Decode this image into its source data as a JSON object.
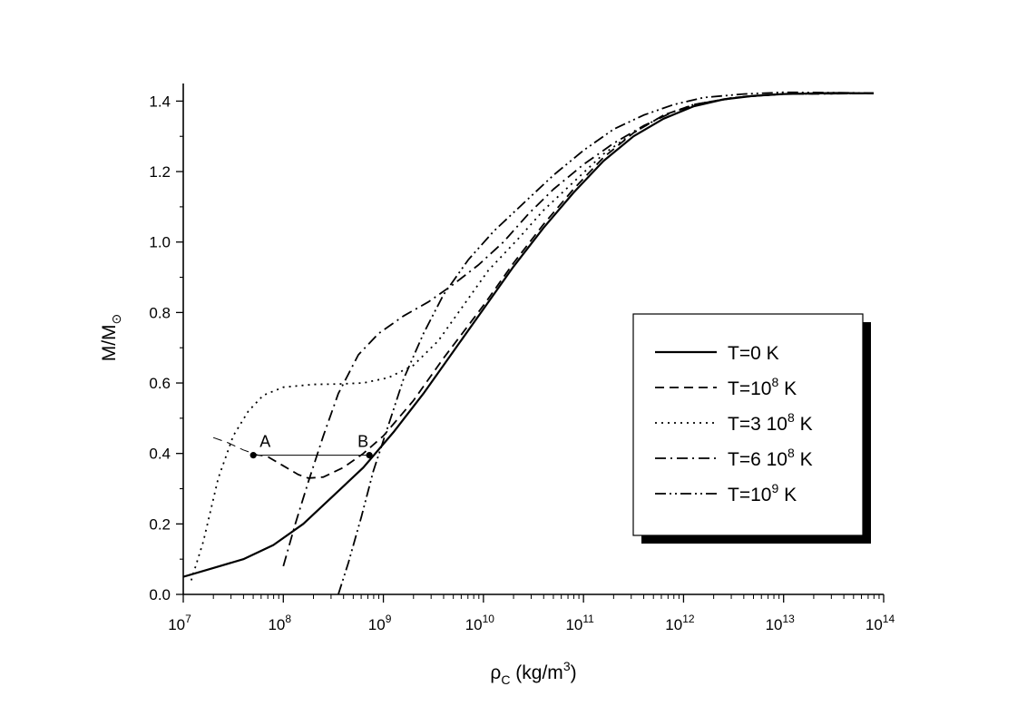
{
  "chart_data": {
    "type": "line",
    "x_scale": "log",
    "xlim_exp": [
      7,
      14
    ],
    "ylim": [
      0,
      1.45
    ],
    "x_tick_exponents": [
      7,
      8,
      9,
      10,
      11,
      12,
      13,
      14
    ],
    "x_tick_base": "10",
    "y_ticks": [
      "0.0",
      "0.2",
      "0.4",
      "0.6",
      "0.8",
      "1.0",
      "1.2",
      "1.4"
    ],
    "xlabel": {
      "main": "ρ",
      "sub": "C",
      "unit_pre": " (kg/m",
      "sup": "3",
      "unit_post": ")"
    },
    "ylabel": {
      "main": "M/M",
      "sub": "⊙"
    },
    "series": [
      {
        "name": "T=0 K",
        "legend": {
          "pre": "T=0 K",
          "sup": "",
          "post": ""
        },
        "dash": "solid",
        "width": 2.2,
        "points": [
          [
            7.0,
            0.05
          ],
          [
            7.3,
            0.075
          ],
          [
            7.6,
            0.1
          ],
          [
            7.9,
            0.14
          ],
          [
            8.2,
            0.2
          ],
          [
            8.5,
            0.28
          ],
          [
            8.8,
            0.36
          ],
          [
            9.1,
            0.46
          ],
          [
            9.4,
            0.57
          ],
          [
            9.7,
            0.69
          ],
          [
            10.0,
            0.81
          ],
          [
            10.3,
            0.93
          ],
          [
            10.6,
            1.04
          ],
          [
            10.9,
            1.14
          ],
          [
            11.2,
            1.23
          ],
          [
            11.5,
            1.3
          ],
          [
            11.8,
            1.35
          ],
          [
            12.1,
            1.385
          ],
          [
            12.4,
            1.405
          ],
          [
            12.7,
            1.415
          ],
          [
            13.0,
            1.42
          ],
          [
            13.5,
            1.423
          ],
          [
            13.9,
            1.422
          ]
        ]
      },
      {
        "name": "T=10^8 K",
        "legend": {
          "pre": "T=10",
          "sup": "8",
          "post": " K"
        },
        "dash": "10,6",
        "width": 1.8,
        "points": [
          [
            7.85,
            0.39
          ],
          [
            8.0,
            0.365
          ],
          [
            8.15,
            0.34
          ],
          [
            8.25,
            0.33
          ],
          [
            8.4,
            0.333
          ],
          [
            8.6,
            0.36
          ],
          [
            8.8,
            0.4
          ],
          [
            9.0,
            0.45
          ],
          [
            9.3,
            0.55
          ],
          [
            9.6,
            0.67
          ],
          [
            10.0,
            0.82
          ],
          [
            10.3,
            0.94
          ],
          [
            10.6,
            1.05
          ],
          [
            10.9,
            1.15
          ],
          [
            11.2,
            1.24
          ],
          [
            11.5,
            1.31
          ],
          [
            11.8,
            1.36
          ],
          [
            12.1,
            1.39
          ],
          [
            12.5,
            1.41
          ],
          [
            13.0,
            1.42
          ],
          [
            13.9,
            1.422
          ]
        ]
      },
      {
        "name": "T=10^8 K (extension)",
        "legend": null,
        "dash": "10,6",
        "width": 1.0,
        "points": [
          [
            7.3,
            0.445
          ],
          [
            7.45,
            0.43
          ],
          [
            7.6,
            0.41
          ],
          [
            7.75,
            0.395
          ],
          [
            7.85,
            0.39
          ]
        ]
      },
      {
        "name": "T=3 10^8 K",
        "legend": {
          "pre": "T=3 10",
          "sup": "8",
          "post": " K"
        },
        "dash": "2,5",
        "width": 1.8,
        "points": [
          [
            7.08,
            0.04
          ],
          [
            7.2,
            0.15
          ],
          [
            7.35,
            0.33
          ],
          [
            7.5,
            0.45
          ],
          [
            7.65,
            0.52
          ],
          [
            7.8,
            0.565
          ],
          [
            8.0,
            0.588
          ],
          [
            8.3,
            0.596
          ],
          [
            8.55,
            0.597
          ],
          [
            8.8,
            0.6
          ],
          [
            9.05,
            0.615
          ],
          [
            9.3,
            0.65
          ],
          [
            9.55,
            0.72
          ],
          [
            9.8,
            0.82
          ],
          [
            10.05,
            0.92
          ],
          [
            10.35,
            1.01
          ],
          [
            10.6,
            1.09
          ],
          [
            10.9,
            1.17
          ],
          [
            11.2,
            1.25
          ],
          [
            11.5,
            1.31
          ],
          [
            11.8,
            1.36
          ],
          [
            12.1,
            1.39
          ],
          [
            12.5,
            1.41
          ],
          [
            13.0,
            1.42
          ],
          [
            13.9,
            1.422
          ]
        ]
      },
      {
        "name": "T=6 10^8 K",
        "legend": {
          "pre": "T=6 10",
          "sup": "8",
          "post": " K"
        },
        "dash": "12,5,2,5",
        "width": 1.8,
        "points": [
          [
            8.0,
            0.08
          ],
          [
            8.12,
            0.2
          ],
          [
            8.25,
            0.32
          ],
          [
            8.4,
            0.45
          ],
          [
            8.55,
            0.57
          ],
          [
            8.75,
            0.68
          ],
          [
            8.95,
            0.74
          ],
          [
            9.2,
            0.79
          ],
          [
            9.45,
            0.83
          ],
          [
            9.7,
            0.88
          ],
          [
            9.95,
            0.935
          ],
          [
            10.2,
            1.0
          ],
          [
            10.45,
            1.08
          ],
          [
            10.7,
            1.15
          ],
          [
            11.0,
            1.22
          ],
          [
            11.3,
            1.28
          ],
          [
            11.6,
            1.33
          ],
          [
            11.9,
            1.37
          ],
          [
            12.2,
            1.395
          ],
          [
            12.6,
            1.413
          ],
          [
            13.0,
            1.42
          ],
          [
            13.9,
            1.422
          ]
        ]
      },
      {
        "name": "T=10^9 K",
        "legend": {
          "pre": "T=10",
          "sup": "9",
          "post": " K"
        },
        "dash": "12,4,2,4,2,4",
        "width": 1.8,
        "points": [
          [
            8.55,
            0.0
          ],
          [
            8.65,
            0.09
          ],
          [
            8.78,
            0.22
          ],
          [
            8.9,
            0.35
          ],
          [
            9.05,
            0.48
          ],
          [
            9.2,
            0.61
          ],
          [
            9.4,
            0.74
          ],
          [
            9.6,
            0.85
          ],
          [
            9.85,
            0.95
          ],
          [
            10.1,
            1.03
          ],
          [
            10.4,
            1.11
          ],
          [
            10.7,
            1.19
          ],
          [
            11.0,
            1.26
          ],
          [
            11.3,
            1.32
          ],
          [
            11.6,
            1.36
          ],
          [
            11.9,
            1.39
          ],
          [
            12.2,
            1.41
          ],
          [
            12.6,
            1.42
          ],
          [
            13.0,
            1.425
          ],
          [
            13.9,
            1.423
          ]
        ]
      }
    ],
    "annotations": {
      "tie_line_y": 0.395,
      "points": [
        {
          "label": "A",
          "x": 7.7,
          "y": 0.395
        },
        {
          "label": "B",
          "x": 8.86,
          "y": 0.395
        }
      ]
    }
  }
}
